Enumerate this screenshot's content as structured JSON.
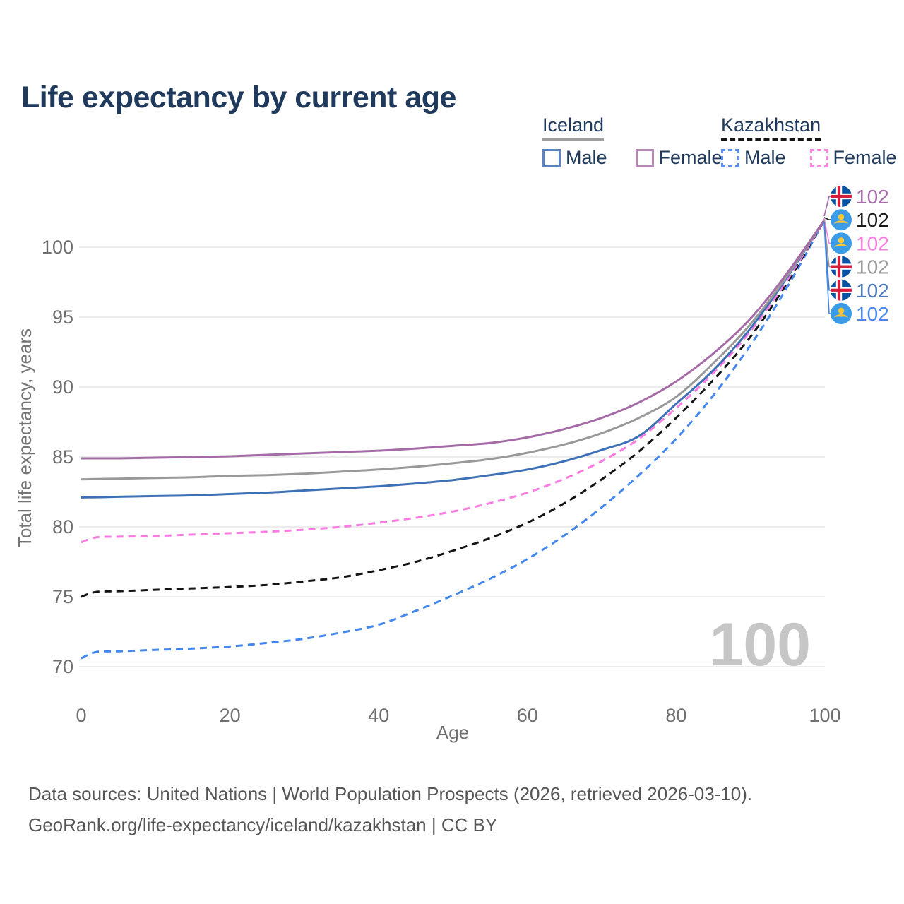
{
  "title": "Life expectancy by current age",
  "watermark": "100",
  "legend": {
    "groups": [
      {
        "label": "Iceland",
        "line_style": "solid",
        "line_color": "#9e9e9e",
        "items": [
          {
            "label": "Male",
            "color": "#5b84c4",
            "style": "solid"
          },
          {
            "label": "Female",
            "color": "#b787b5",
            "style": "solid"
          }
        ]
      },
      {
        "label": "Kazakhstan",
        "line_style": "dashed",
        "line_color": "#141414",
        "items": [
          {
            "label": "Male",
            "color": "#5c8ef5",
            "style": "dashed"
          },
          {
            "label": "Female",
            "color": "#fc86e6",
            "style": "dashed"
          }
        ]
      }
    ]
  },
  "chart_data": {
    "type": "line",
    "title": "Life expectancy by current age",
    "xlabel": "Age",
    "ylabel": "Total life expectancy, years",
    "xlim": [
      0,
      100
    ],
    "ylim": [
      70,
      102
    ],
    "x_ticks": [
      0,
      20,
      40,
      60,
      80,
      100
    ],
    "y_ticks": [
      70,
      75,
      80,
      85,
      90,
      95,
      100
    ],
    "grid": "horizontal",
    "legend_position": "top-right",
    "series": [
      {
        "id": "kazakhstan-male",
        "name": "Kazakhstan Male",
        "country": "Kazakhstan",
        "sex": "Male",
        "color": "#4286f0",
        "dash": true,
        "end_value": 102,
        "points": [
          [
            0,
            70.6
          ],
          [
            2,
            71.05
          ],
          [
            5,
            71.1
          ],
          [
            10,
            71.2
          ],
          [
            15,
            71.3
          ],
          [
            20,
            71.45
          ],
          [
            25,
            71.7
          ],
          [
            30,
            72.0
          ],
          [
            35,
            72.45
          ],
          [
            40,
            73.0
          ],
          [
            45,
            74.0
          ],
          [
            50,
            75.1
          ],
          [
            55,
            76.3
          ],
          [
            60,
            77.7
          ],
          [
            65,
            79.4
          ],
          [
            70,
            81.4
          ],
          [
            75,
            83.7
          ],
          [
            80,
            86.3
          ],
          [
            85,
            89.4
          ],
          [
            90,
            93.0
          ],
          [
            95,
            97.2
          ],
          [
            100,
            102
          ]
        ]
      },
      {
        "id": "kazakhstan-total",
        "name": "Kazakhstan",
        "country": "Kazakhstan",
        "sex": "All",
        "color": "#141414",
        "dash": true,
        "end_value": 102,
        "points": [
          [
            0,
            75.0
          ],
          [
            2,
            75.35
          ],
          [
            5,
            75.4
          ],
          [
            10,
            75.5
          ],
          [
            15,
            75.6
          ],
          [
            20,
            75.7
          ],
          [
            25,
            75.85
          ],
          [
            30,
            76.1
          ],
          [
            35,
            76.4
          ],
          [
            40,
            76.9
          ],
          [
            45,
            77.5
          ],
          [
            50,
            78.3
          ],
          [
            55,
            79.2
          ],
          [
            60,
            80.3
          ],
          [
            65,
            81.7
          ],
          [
            70,
            83.4
          ],
          [
            75,
            85.4
          ],
          [
            80,
            87.8
          ],
          [
            85,
            90.5
          ],
          [
            90,
            93.6
          ],
          [
            95,
            97.5
          ],
          [
            100,
            102
          ]
        ]
      },
      {
        "id": "kazakhstan-female",
        "name": "Kazakhstan Female",
        "country": "Kazakhstan",
        "sex": "Female",
        "color": "#fb7ce1",
        "dash": true,
        "end_value": 102,
        "points": [
          [
            0,
            78.9
          ],
          [
            2,
            79.25
          ],
          [
            5,
            79.3
          ],
          [
            10,
            79.35
          ],
          [
            15,
            79.45
          ],
          [
            20,
            79.55
          ],
          [
            25,
            79.65
          ],
          [
            30,
            79.8
          ],
          [
            35,
            80.0
          ],
          [
            40,
            80.3
          ],
          [
            45,
            80.65
          ],
          [
            50,
            81.1
          ],
          [
            55,
            81.7
          ],
          [
            60,
            82.45
          ],
          [
            65,
            83.45
          ],
          [
            70,
            84.7
          ],
          [
            75,
            86.3
          ],
          [
            80,
            88.5
          ],
          [
            85,
            91.0
          ],
          [
            90,
            94.0
          ],
          [
            95,
            97.7
          ],
          [
            100,
            102
          ]
        ]
      },
      {
        "id": "iceland-male",
        "name": "Iceland Male",
        "country": "Iceland",
        "sex": "Male",
        "color": "#3e70b6",
        "dash": false,
        "end_value": 102,
        "points": [
          [
            0,
            82.1
          ],
          [
            5,
            82.15
          ],
          [
            10,
            82.2
          ],
          [
            15,
            82.25
          ],
          [
            20,
            82.35
          ],
          [
            25,
            82.45
          ],
          [
            30,
            82.6
          ],
          [
            35,
            82.75
          ],
          [
            40,
            82.9
          ],
          [
            45,
            83.1
          ],
          [
            50,
            83.35
          ],
          [
            55,
            83.7
          ],
          [
            60,
            84.1
          ],
          [
            65,
            84.7
          ],
          [
            70,
            85.5
          ],
          [
            75,
            86.5
          ],
          [
            80,
            88.8
          ],
          [
            85,
            91.2
          ],
          [
            90,
            94.2
          ],
          [
            95,
            97.9
          ],
          [
            100,
            102
          ]
        ]
      },
      {
        "id": "iceland-total",
        "name": "Iceland",
        "country": "Iceland",
        "sex": "All",
        "color": "#999999",
        "dash": false,
        "end_value": 102,
        "points": [
          [
            0,
            83.4
          ],
          [
            5,
            83.45
          ],
          [
            10,
            83.5
          ],
          [
            15,
            83.55
          ],
          [
            20,
            83.65
          ],
          [
            25,
            83.7
          ],
          [
            30,
            83.8
          ],
          [
            35,
            83.95
          ],
          [
            40,
            84.1
          ],
          [
            45,
            84.3
          ],
          [
            50,
            84.55
          ],
          [
            55,
            84.85
          ],
          [
            60,
            85.3
          ],
          [
            65,
            85.9
          ],
          [
            70,
            86.7
          ],
          [
            75,
            87.8
          ],
          [
            80,
            89.3
          ],
          [
            85,
            91.7
          ],
          [
            90,
            94.5
          ],
          [
            95,
            98.0
          ],
          [
            100,
            102
          ]
        ]
      },
      {
        "id": "iceland-female",
        "name": "Iceland Female",
        "country": "Iceland",
        "sex": "Female",
        "color": "#a56ba7",
        "dash": false,
        "end_value": 102,
        "points": [
          [
            0,
            84.9
          ],
          [
            5,
            84.9
          ],
          [
            10,
            84.95
          ],
          [
            15,
            85.0
          ],
          [
            20,
            85.05
          ],
          [
            25,
            85.15
          ],
          [
            30,
            85.25
          ],
          [
            35,
            85.35
          ],
          [
            40,
            85.45
          ],
          [
            45,
            85.6
          ],
          [
            50,
            85.8
          ],
          [
            55,
            86.0
          ],
          [
            60,
            86.4
          ],
          [
            65,
            87.0
          ],
          [
            70,
            87.8
          ],
          [
            75,
            88.9
          ],
          [
            80,
            90.4
          ],
          [
            85,
            92.4
          ],
          [
            90,
            94.9
          ],
          [
            95,
            98.2
          ],
          [
            100,
            102
          ]
        ]
      }
    ]
  },
  "end_labels": [
    {
      "series": "iceland-female",
      "flag": "iceland",
      "value": "102",
      "color": "#a76bab"
    },
    {
      "series": "kazakhstan-total",
      "flag": "kazakhstan",
      "value": "102",
      "color": "#1a1a1a"
    },
    {
      "series": "kazakhstan-female",
      "flag": "kazakhstan",
      "value": "102",
      "color": "#fb7ce1"
    },
    {
      "series": "iceland-total",
      "flag": "iceland",
      "value": "102",
      "color": "#999999"
    },
    {
      "series": "iceland-male",
      "flag": "iceland",
      "value": "102",
      "color": "#4a79ba"
    },
    {
      "series": "kazakhstan-male",
      "flag": "kazakhstan",
      "value": "102",
      "color": "#4286f0"
    }
  ],
  "footer": {
    "line1": "Data sources: United Nations | World Population Prospects (2026, retrieved 2026-03-10).",
    "line2": "GeoRank.org/life-expectancy/iceland/kazakhstan | CC BY"
  },
  "colors": {
    "title_text": "#1f3a5c",
    "tick_text": "#6e6e6e",
    "axis_title_text": "#757575",
    "gridline": "#ececec",
    "watermark": "#c6c6c6",
    "footer_text": "#565656",
    "iceland_flag_blue": "#0752A2",
    "iceland_flag_red": "#D21F3C",
    "kazakhstan_flag_blue": "#3A9BE9",
    "kazakhstan_flag_gold": "#FFC82E"
  }
}
